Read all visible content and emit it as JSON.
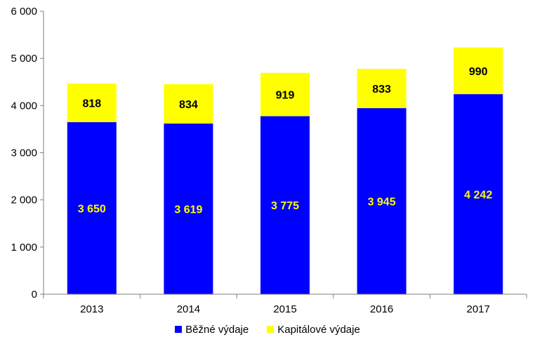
{
  "chart_data": {
    "type": "bar",
    "stacked": true,
    "categories": [
      "2013",
      "2014",
      "2015",
      "2016",
      "2017"
    ],
    "series": [
      {
        "name": "Běžné výdaje",
        "color": "#0000FF",
        "label_color": "#FFFF00",
        "values": [
          3650,
          3619,
          3775,
          3945,
          4242
        ],
        "labels": [
          "3 650",
          "3 619",
          "3 775",
          "3 945",
          "4 242"
        ]
      },
      {
        "name": "Kapitálové výdaje",
        "color": "#FFFF00",
        "label_color": "#000000",
        "values": [
          818,
          834,
          919,
          833,
          990
        ],
        "labels": [
          "818",
          "834",
          "919",
          "833",
          "990"
        ]
      }
    ],
    "ylim": [
      0,
      6000
    ],
    "yticks": [
      0,
      1000,
      2000,
      3000,
      4000,
      5000,
      6000
    ],
    "ytick_labels": [
      "0",
      "1 000",
      "2 000",
      "3 000",
      "4 000",
      "5 000",
      "6 000"
    ],
    "title": "",
    "xlabel": "",
    "ylabel": "",
    "grid": false,
    "legend_position": "bottom"
  }
}
